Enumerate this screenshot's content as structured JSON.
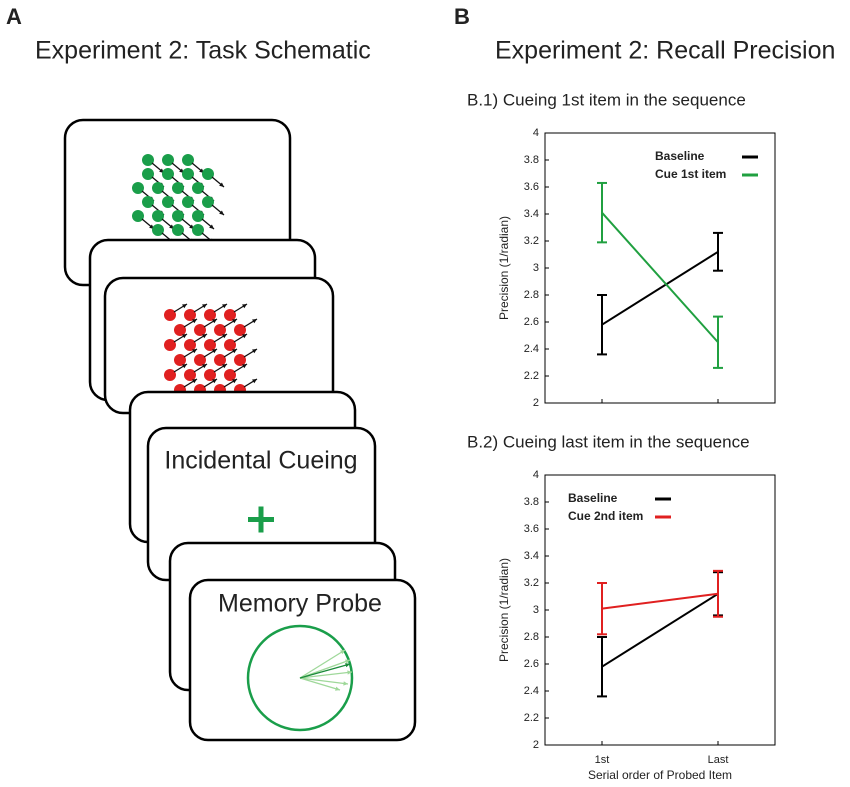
{
  "panels": [
    {
      "label": "A",
      "title": "Experiment 2: Task Schematic",
      "cards": [
        "Incidental Cueing",
        "Memory Probe"
      ]
    },
    {
      "label": "B",
      "title": "Experiment 2: Recall Precision"
    }
  ],
  "chart_data": [
    {
      "type": "line",
      "title": "B.1) Cueing 1st item in the sequence",
      "y_label": "Precision (1/radian)",
      "ylim": [
        2,
        4
      ],
      "yticks": [
        2,
        2.2,
        2.4,
        2.6,
        2.8,
        3,
        3.2,
        3.4,
        3.6,
        3.8,
        4
      ],
      "legend": "upper right",
      "series": [
        {
          "name": "Baseline",
          "color": "#000000",
          "values": [
            2.58,
            3.12
          ],
          "errors": [
            0.22,
            0.14
          ]
        },
        {
          "name": "Cue 1st item",
          "color": "#20a040",
          "values": [
            3.41,
            2.45
          ],
          "errors": [
            0.22,
            0.19
          ]
        }
      ]
    },
    {
      "type": "line",
      "title": "B.2) Cueing last item in the sequence",
      "y_label": "Precision (1/radian)",
      "x_label": "Serial order of Probed Item",
      "categories": [
        "1st",
        "Last"
      ],
      "ylim": [
        2,
        4
      ],
      "yticks": [
        2,
        2.2,
        2.4,
        2.6,
        2.8,
        3,
        3.2,
        3.4,
        3.6,
        3.8,
        4
      ],
      "legend": "upper left",
      "series": [
        {
          "name": "Baseline",
          "color": "#000000",
          "values": [
            2.58,
            3.12
          ],
          "errors": [
            0.22,
            0.16
          ]
        },
        {
          "name": "Cue 2nd item",
          "color": "#e02020",
          "values": [
            3.01,
            3.12
          ],
          "errors": [
            0.19,
            0.17
          ]
        }
      ]
    }
  ]
}
